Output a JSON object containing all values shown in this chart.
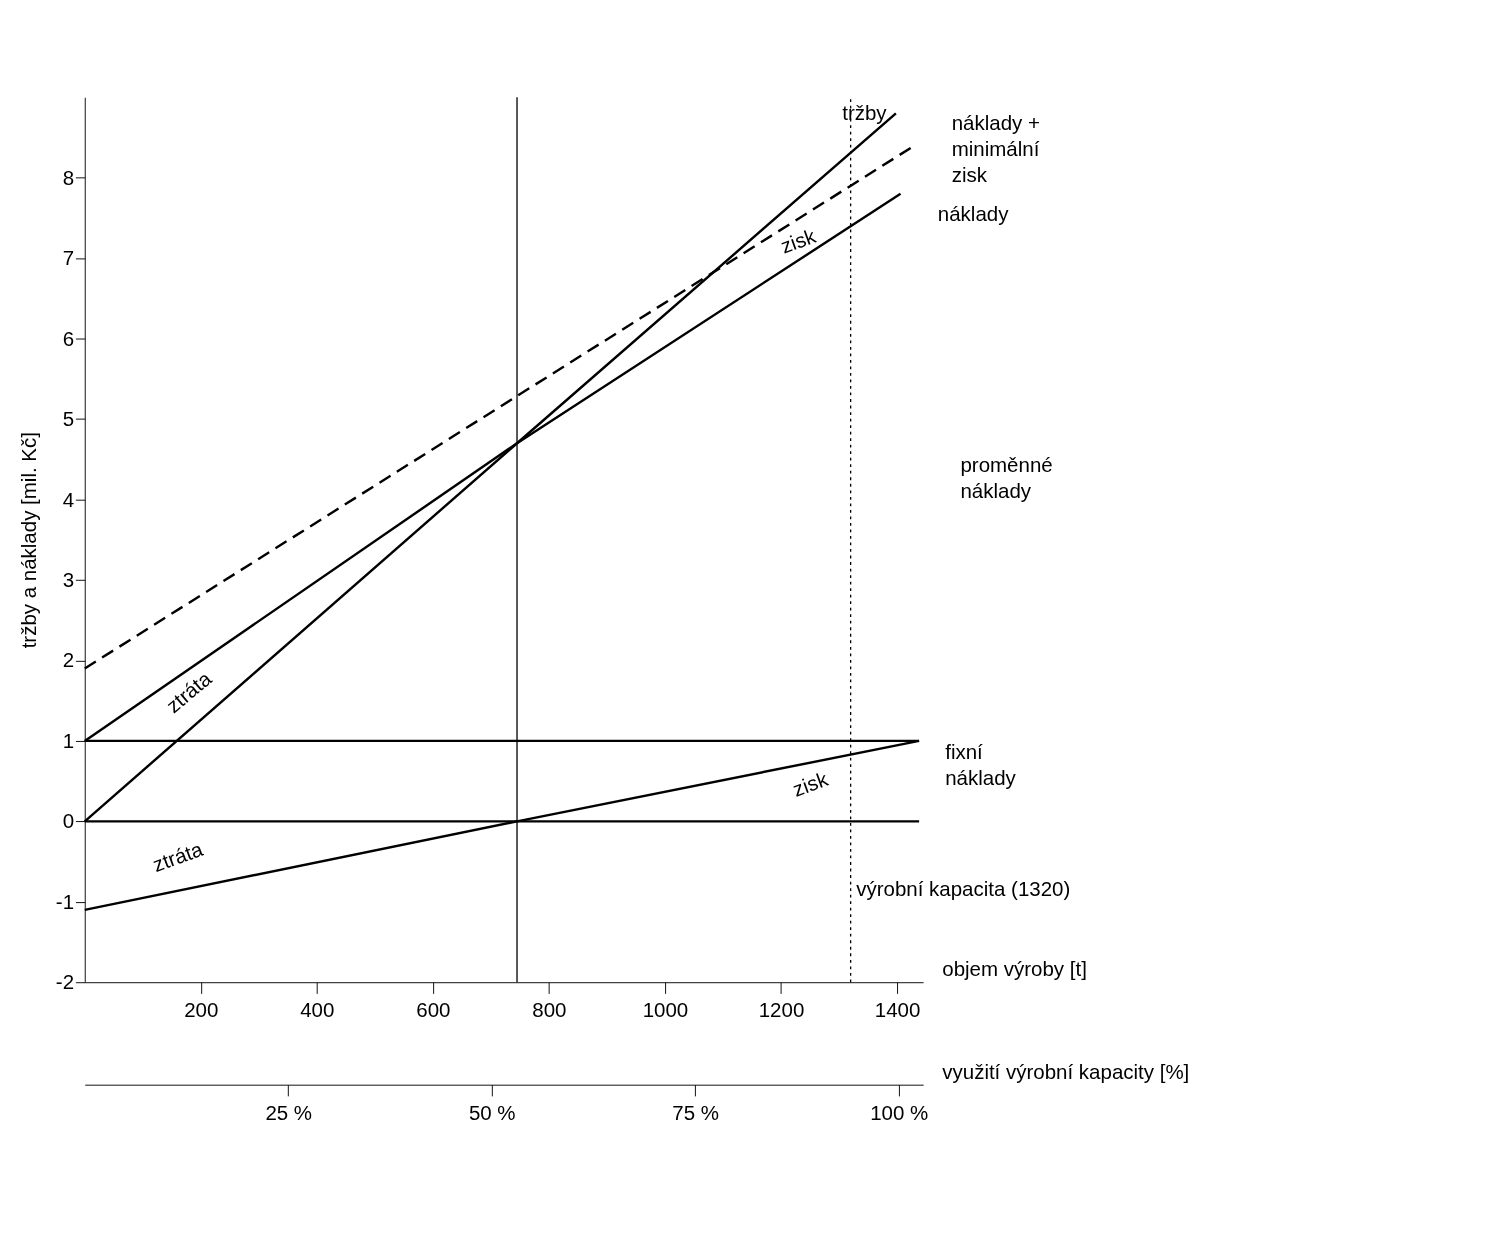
{
  "chart_data": {
    "type": "line",
    "ylabel": "tržby a náklady [mil. Kč]",
    "xlabel": "objem výroby [t]",
    "x2label": "využití výrobní kapacity [%]",
    "xlim": [
      0,
      1445
    ],
    "xticks": [
      200,
      400,
      600,
      800,
      1000,
      1200,
      1400
    ],
    "x2lim": [
      0,
      103
    ],
    "x2ticks": [
      {
        "value": 25,
        "label": "25 %"
      },
      {
        "value": 50,
        "label": "50 %"
      },
      {
        "value": 75,
        "label": "75 %"
      },
      {
        "value": 100,
        "label": "100 %"
      }
    ],
    "ylim": [
      -2,
      9
    ],
    "yticks": [
      -2,
      -1,
      0,
      1,
      2,
      3,
      4,
      5,
      6,
      7,
      8
    ],
    "grid": false,
    "marker": "none",
    "series": [
      {
        "name": "tržby",
        "color": "#000000",
        "x": [
          0,
          745,
          1398
        ],
        "values": [
          0,
          4.7,
          8.8
        ]
      },
      {
        "name": "náklady + minimální zisk",
        "color": "#000000",
        "line_style": "dashed",
        "x": [
          0,
          1430
        ],
        "values": [
          1.9,
          8.4
        ]
      },
      {
        "name": "náklady",
        "color": "#000000",
        "x": [
          0,
          745,
          1406
        ],
        "values": [
          1,
          4.7,
          7.8
        ]
      },
      {
        "name": "fixní náklady",
        "color": "#000000",
        "x": [
          0,
          1438
        ],
        "values": [
          1,
          1
        ]
      },
      {
        "color": "#000000",
        "x": [
          0,
          745,
          1438
        ],
        "values": [
          -1.1,
          0,
          1
        ]
      },
      {
        "color": "#000000",
        "x": [
          0,
          1438
        ],
        "values": [
          0,
          0
        ]
      }
    ],
    "ref_lines": [
      {
        "axis": "x",
        "value": 745,
        "color": "#000000",
        "line_style": "solid"
      },
      {
        "axis": "x",
        "value": 1320,
        "label": "výrobní kapacita (1320)",
        "color": "#000000",
        "line_style": "dotted"
      }
    ],
    "annotations": [
      "zisk",
      "ztráta",
      "zisk",
      "ztráta",
      "proměnné náklady"
    ]
  }
}
